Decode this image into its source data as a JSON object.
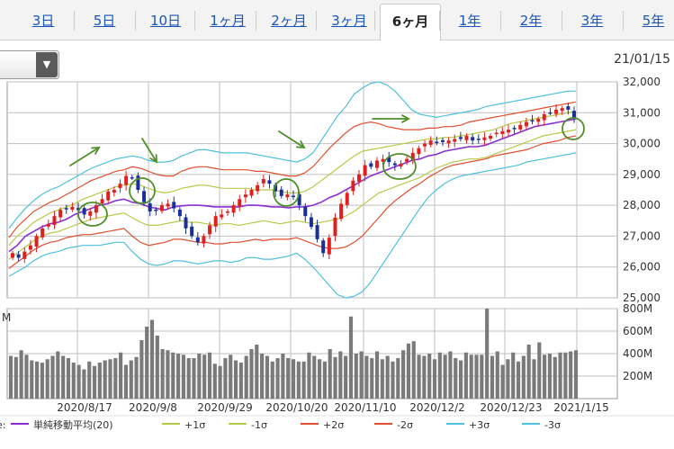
{
  "tabs": [
    {
      "label": "3日",
      "active": false
    },
    {
      "label": "5日",
      "active": false
    },
    {
      "label": "10日",
      "active": false
    },
    {
      "label": "1ヶ月",
      "active": false
    },
    {
      "label": "2ヶ月",
      "active": false
    },
    {
      "label": "3ヶ月",
      "active": false
    },
    {
      "label": "6ヶ月",
      "active": true
    },
    {
      "label": "1年",
      "active": false
    },
    {
      "label": "2年",
      "active": false
    },
    {
      "label": "3年",
      "active": false
    },
    {
      "label": "5年",
      "active": false
    }
  ],
  "dropdown": {
    "icon": "chevron-down-icon",
    "arrow": "▼"
  },
  "date_label": "21/01/15",
  "volume_unit_label": "M",
  "legend": {
    "prefix": "e:",
    "items": [
      {
        "label": "単純移動平均(20)",
        "color": "#8b2fd0"
      },
      {
        "label": "+1σ",
        "color": "#b8c94a"
      },
      {
        "label": "-1σ",
        "color": "#b8c94a"
      },
      {
        "label": "+2σ",
        "color": "#e05030"
      },
      {
        "label": "-2σ",
        "color": "#e05030"
      },
      {
        "label": "+3σ",
        "color": "#4fc0dd"
      },
      {
        "label": "-3σ",
        "color": "#4fc0dd"
      }
    ]
  },
  "colors": {
    "up": "#e02020",
    "down": "#1a2f9a",
    "volume": "#7a7a7a",
    "grid": "#bfbfbf",
    "annotation": "#4f8f2a"
  },
  "chart_data": [
    {
      "type": "candlestick",
      "title": "",
      "ylim": [
        25000,
        32000
      ],
      "y_ticks": [
        "32,000",
        "31,000",
        "30,000",
        "29,000",
        "28,000",
        "27,000",
        "26,000",
        "25,000"
      ],
      "x_ticks": [
        "2020/8/17",
        "2020/9/8",
        "2020/9/29",
        "2020/10/20",
        "2020/11/10",
        "2020/12/2",
        "2020/12/23",
        "2021/1/15"
      ],
      "close": [
        26450,
        26300,
        26500,
        26700,
        27000,
        27250,
        27400,
        27650,
        27850,
        27900,
        27950,
        27850,
        27700,
        27800,
        28000,
        28200,
        28450,
        28500,
        28700,
        28950,
        28900,
        28500,
        28100,
        27800,
        27850,
        28000,
        28050,
        27900,
        27650,
        27250,
        27000,
        26800,
        27000,
        27350,
        27650,
        27700,
        27800,
        28000,
        28200,
        28350,
        28500,
        28650,
        28850,
        28700,
        28450,
        28300,
        28350,
        28300,
        28000,
        27650,
        27300,
        26900,
        26450,
        26950,
        27600,
        28050,
        28400,
        28800,
        29000,
        29300,
        29250,
        29450,
        29500,
        29400,
        29300,
        29350,
        29500,
        29700,
        29850,
        30000,
        30100,
        30050,
        30050,
        30100,
        30150,
        30150,
        30250,
        30100,
        30150,
        30200,
        30250,
        30350,
        30400,
        30450,
        30500,
        30600,
        30700,
        30750,
        30800,
        30950,
        31000,
        31100,
        31150,
        31100,
        30850
      ],
      "ma20": [
        26500,
        26700,
        27000,
        27150,
        27300,
        27400,
        27450,
        27550,
        27700,
        27800,
        27900,
        28000,
        28050,
        28150,
        28200,
        28100,
        28050,
        27950,
        27900,
        27850,
        27950,
        27980,
        28000,
        28000,
        27980,
        27950,
        27950,
        27950,
        27950,
        28000,
        28000,
        27980,
        27950,
        27950,
        27920,
        27950,
        27950,
        28000,
        28100,
        28250,
        28350,
        28500,
        28650,
        28800,
        28950,
        29050,
        29150,
        29250,
        29350,
        29450,
        29500,
        29600,
        29650,
        29750,
        29800,
        29850,
        29900,
        29900,
        29950,
        30050,
        30150,
        30250,
        30350,
        30450,
        30550,
        30600,
        30650,
        30700,
        30750,
        30800
      ],
      "sigma1_upper": [
        26700,
        27000,
        27200,
        27450,
        27600,
        27750,
        27850,
        27950,
        28050,
        28200,
        28300,
        28400,
        28500,
        28600,
        28650,
        28700,
        28650,
        28550,
        28450,
        28400,
        28450,
        28550,
        28600,
        28650,
        28650,
        28600,
        28550,
        28550,
        28550,
        28550,
        28500,
        28500,
        28500,
        28450,
        28400,
        28400,
        28450,
        28600,
        28800,
        29000,
        29200,
        29400,
        29600,
        29750,
        29800,
        29850,
        29900,
        29950,
        30000,
        30050,
        30100,
        30150,
        30150,
        30200,
        30200,
        30250,
        30300,
        30350,
        30400,
        30450,
        30550,
        30650,
        30700,
        30750,
        30800,
        30850,
        30900,
        30950,
        31000,
        31050
      ],
      "sigma1_lower": [
        26250,
        26450,
        26650,
        26850,
        27000,
        27100,
        27150,
        27250,
        27350,
        27450,
        27550,
        27600,
        27650,
        27700,
        27750,
        27600,
        27450,
        27350,
        27350,
        27400,
        27450,
        27500,
        27450,
        27450,
        27400,
        27350,
        27400,
        27400,
        27350,
        27400,
        27450,
        27500,
        27450,
        27400,
        27450,
        27500,
        27450,
        27400,
        27450,
        27500,
        27550,
        27650,
        27800,
        28000,
        28200,
        28400,
        28500,
        28600,
        28700,
        28800,
        28900,
        29050,
        29200,
        29300,
        29400,
        29450,
        29500,
        29500,
        29550,
        29650,
        29750,
        29850,
        29950,
        30050,
        30150,
        30250,
        30300,
        30350,
        30400,
        30450
      ],
      "sigma2_upper": [
        26950,
        27300,
        27550,
        27800,
        27950,
        28100,
        28200,
        28350,
        28500,
        28650,
        28800,
        28900,
        29000,
        29100,
        29150,
        29250,
        29200,
        29100,
        29000,
        28950,
        28950,
        29100,
        29200,
        29250,
        29250,
        29200,
        29150,
        29150,
        29150,
        29150,
        29100,
        29100,
        29050,
        29000,
        28950,
        28950,
        29050,
        29250,
        29550,
        29850,
        30100,
        30350,
        30550,
        30650,
        30700,
        30650,
        30550,
        30500,
        30450,
        30450,
        30450,
        30500,
        30500,
        30550,
        30550,
        30600,
        30700,
        30750,
        30800,
        30850,
        30900,
        30950,
        31000,
        31050,
        31100,
        31150,
        31200,
        31250,
        31300,
        31350
      ],
      "sigma2_lower": [
        25950,
        26150,
        26350,
        26550,
        26700,
        26800,
        26850,
        26950,
        27000,
        27050,
        27050,
        27100,
        27150,
        27200,
        27250,
        27000,
        26800,
        26700,
        26750,
        26800,
        26900,
        26900,
        26850,
        26800,
        26800,
        26750,
        26750,
        26800,
        26800,
        26850,
        26900,
        26850,
        26900,
        26900,
        26900,
        26950,
        26850,
        26750,
        26650,
        26600,
        26600,
        26650,
        26800,
        27000,
        27300,
        27600,
        27900,
        28150,
        28350,
        28550,
        28700,
        28900,
        29050,
        29200,
        29300,
        29350,
        29400,
        29450,
        29500,
        29600,
        29650,
        29700,
        29750,
        29800,
        29900,
        30000,
        30050,
        30100,
        30200,
        30250
      ],
      "sigma3_upper": [
        27250,
        27600,
        27900,
        28150,
        28350,
        28500,
        28600,
        28750,
        28900,
        29050,
        29200,
        29300,
        29400,
        29500,
        29550,
        29600,
        29550,
        29450,
        29400,
        29400,
        29450,
        29600,
        29700,
        29800,
        29800,
        29750,
        29700,
        29700,
        29700,
        29700,
        29650,
        29600,
        29550,
        29500,
        29450,
        29400,
        29500,
        29700,
        30100,
        30500,
        30900,
        31200,
        31600,
        31800,
        31950,
        32000,
        31900,
        31700,
        31400,
        31100,
        30950,
        30900,
        30850,
        30900,
        30950,
        31000,
        31050,
        31100,
        31200,
        31250,
        31300,
        31350,
        31400,
        31450,
        31500,
        31550,
        31600,
        31650,
        31700,
        31700
      ],
      "sigma3_lower": [
        25700,
        25850,
        26000,
        26200,
        26350,
        26450,
        26500,
        26600,
        26650,
        26700,
        26700,
        26700,
        26750,
        26800,
        26800,
        26500,
        26250,
        26100,
        26050,
        26100,
        26200,
        26200,
        26150,
        26100,
        26150,
        26200,
        26200,
        26150,
        26200,
        26300,
        26300,
        26250,
        26250,
        26300,
        26350,
        26450,
        26250,
        26000,
        25700,
        25400,
        25100,
        25000,
        25050,
        25200,
        25500,
        25900,
        26300,
        26700,
        27100,
        27500,
        27900,
        28250,
        28500,
        28700,
        28850,
        28950,
        29000,
        29050,
        29100,
        29150,
        29200,
        29250,
        29300,
        29400,
        29450,
        29500,
        29550,
        29600,
        29650,
        29700
      ],
      "annotations": [
        "arrow",
        "arrow",
        "circle",
        "circle",
        "arrow",
        "circle",
        "arrow",
        "circle",
        "circle"
      ]
    },
    {
      "type": "bar",
      "title": "",
      "ylabel": "M",
      "ylim": [
        0,
        800
      ],
      "y_ticks": [
        "800M",
        "600M",
        "400M",
        "200M"
      ],
      "values": [
        380,
        370,
        430,
        390,
        340,
        330,
        320,
        350,
        380,
        420,
        380,
        360,
        320,
        300,
        260,
        330,
        290,
        320,
        340,
        350,
        360,
        410,
        300,
        340,
        370,
        520,
        640,
        700,
        560,
        440,
        430,
        410,
        400,
        390,
        360,
        360,
        400,
        390,
        410,
        310,
        290,
        360,
        390,
        340,
        320,
        380,
        440,
        480,
        400,
        380,
        330,
        360,
        400,
        360,
        350,
        330,
        330,
        410,
        380,
        350,
        330,
        440,
        370,
        420,
        380,
        730,
        400,
        420,
        380,
        360,
        420,
        350,
        380,
        330,
        360,
        430,
        490,
        510,
        390,
        380,
        400,
        350,
        410,
        390,
        420,
        360,
        340,
        410,
        390,
        390,
        390,
        800,
        380,
        420,
        300,
        350,
        410,
        330,
        380,
        480,
        350,
        500,
        390,
        400,
        370,
        410,
        410,
        420,
        430
      ]
    }
  ]
}
